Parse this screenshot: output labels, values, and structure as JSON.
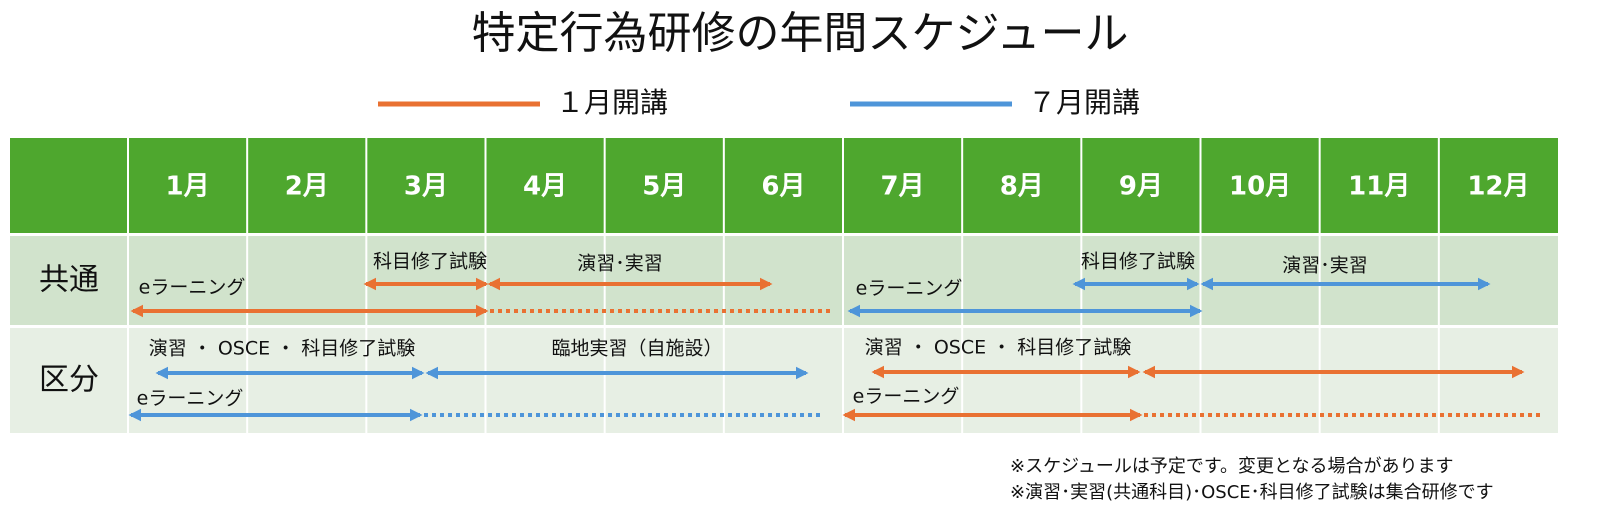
{
  "title": "特定行為研修の年間スケジュール",
  "legend": [
    "１月開講",
    "７月開講"
  ],
  "table": {
    "months": [
      "1月",
      "2月",
      "3月",
      "4月",
      "5月",
      "6月",
      "7月",
      "8月",
      "9月",
      "10月",
      "11月",
      "12月"
    ],
    "rows": [
      {
        "label": "共通",
        "items": [
          "科目修了試験",
          "演習･実習",
          "eラーニング",
          "eラーニング",
          "科目修了試験",
          "演習･実習"
        ]
      },
      {
        "label": "区分",
        "items": [
          "演習 ・ OSCE ・ 科目修了試験",
          "臨地実習（自施設）",
          "eラーニング",
          "演習 ・ OSCE ・ 科目修了試験",
          "eラーニング"
        ]
      }
    ]
  },
  "notes": [
    "※スケジュールは予定です。変更となる場合があります",
    "※演習･実習(共通科目)･OSCE･科目修了試験は集合研修です"
  ]
}
